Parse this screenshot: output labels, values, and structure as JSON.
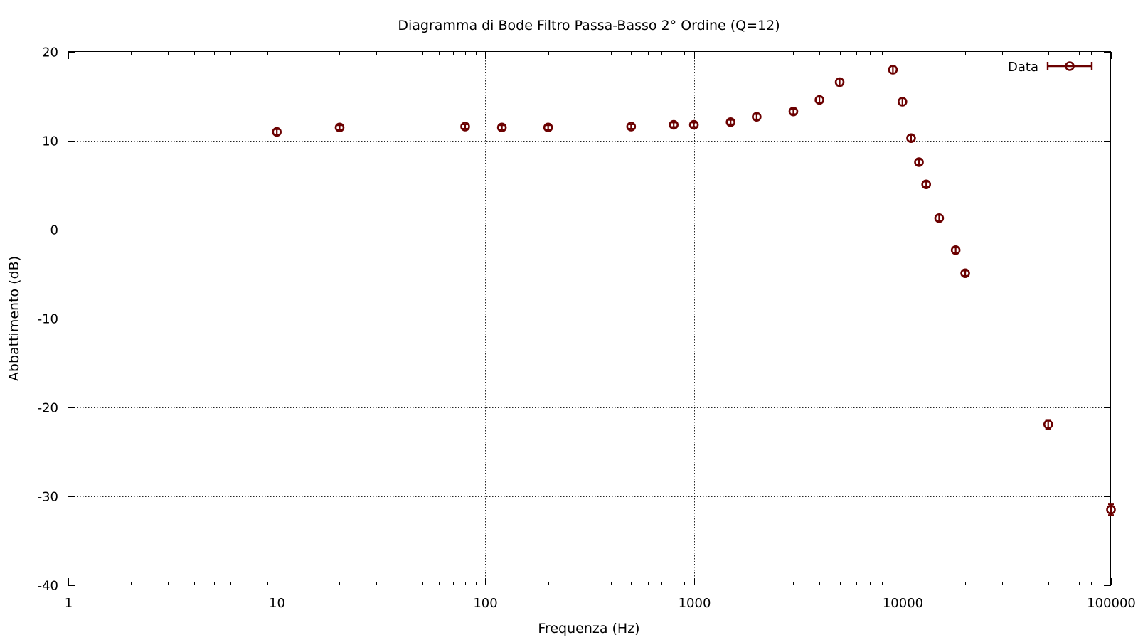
{
  "chart_data": {
    "type": "scatter",
    "title": "Diagramma di Bode Filtro Passa-Basso 2° Ordine (Q=12)",
    "xlabel": "Frequenza (Hz)",
    "ylabel": "Abbattimento (dB)",
    "x_scale": "log",
    "xlim": [
      1,
      100000
    ],
    "ylim": [
      -40,
      20
    ],
    "x_ticks": [
      1,
      10,
      100,
      1000,
      10000,
      100000
    ],
    "x_tick_labels": [
      "1",
      "10",
      "100",
      "1000",
      "10000",
      "100000"
    ],
    "y_ticks": [
      -40,
      -30,
      -20,
      -10,
      0,
      10,
      20
    ],
    "y_tick_labels": [
      "-40",
      "-30",
      "-20",
      "-10",
      "0",
      "10",
      "20"
    ],
    "grid": true,
    "legend_position": "top-right",
    "series": [
      {
        "name": "Data",
        "color": "#6b0000",
        "marker": "circle-with-errorbars",
        "x": [
          10,
          20,
          80,
          120,
          200,
          500,
          800,
          1000,
          1500,
          2000,
          3000,
          4000,
          5000,
          9000,
          10000,
          11000,
          12000,
          13000,
          15000,
          18000,
          20000,
          50000,
          100000
        ],
        "y": [
          11.0,
          11.5,
          11.6,
          11.5,
          11.5,
          11.6,
          11.8,
          11.8,
          12.1,
          12.7,
          13.3,
          14.6,
          16.6,
          18.0,
          14.4,
          10.3,
          7.6,
          5.1,
          1.3,
          -2.3,
          -4.9,
          -21.9,
          -31.5
        ],
        "y_err": [
          0.3,
          0.25,
          0.25,
          0.25,
          0.25,
          0.25,
          0.25,
          0.25,
          0.25,
          0.3,
          0.3,
          0.35,
          0.4,
          0.4,
          0.4,
          0.35,
          0.3,
          0.3,
          0.35,
          0.3,
          0.3,
          0.5,
          0.6
        ]
      }
    ]
  }
}
